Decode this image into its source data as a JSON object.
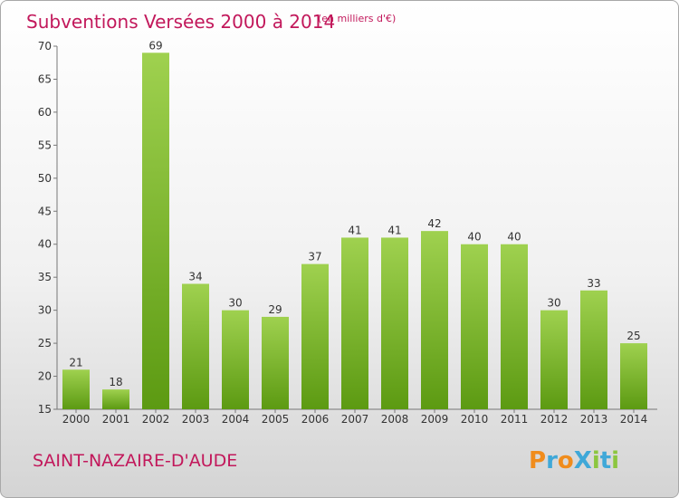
{
  "chart_data": {
    "type": "bar",
    "title": "Subventions Versées 2000 à 2014",
    "subtitle": "(en milliers d'€)",
    "categories": [
      "2000",
      "2001",
      "2002",
      "2003",
      "2004",
      "2005",
      "2006",
      "2007",
      "2008",
      "2009",
      "2010",
      "2011",
      "2012",
      "2013",
      "2014"
    ],
    "values": [
      21,
      18,
      69,
      34,
      30,
      29,
      37,
      41,
      41,
      42,
      40,
      40,
      30,
      33,
      25
    ],
    "ylim": [
      15,
      70
    ],
    "yticks": [
      15,
      20,
      25,
      30,
      35,
      40,
      45,
      50,
      55,
      60,
      65,
      70
    ],
    "xlabel": "",
    "ylabel": "",
    "grid": false,
    "bar_color_top": "#9fd14f",
    "bar_color_bottom": "#5c9a12"
  },
  "footer": {
    "town": "SAINT-NAZAIRE-D'AUDE",
    "logo": "ProXiti"
  },
  "colors": {
    "accent": "#c2185b"
  }
}
